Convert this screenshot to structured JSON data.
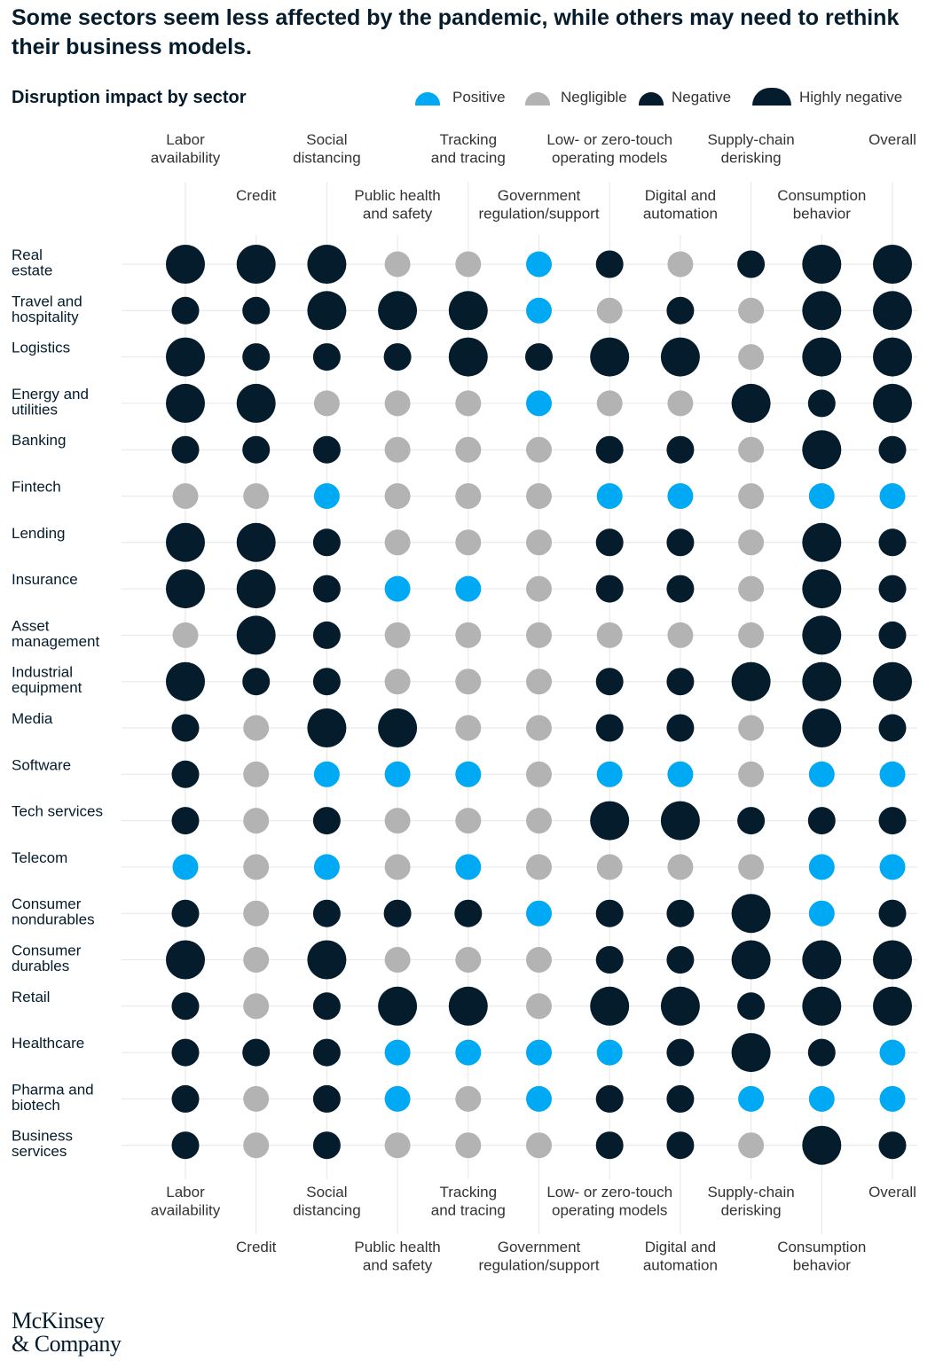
{
  "headline": "Some sectors seem less affected by the pandemic, while others may need to rethink their business models.",
  "subtitle": "Disruption impact by sector",
  "legend": {
    "positive": "Positive",
    "negligible": "Negligible",
    "negative": "Negative",
    "highly_negative": "Highly negative"
  },
  "colors": {
    "positive": "#00a9f4",
    "negligible": "#b3b3b3",
    "negative": "#051c2c",
    "highly_negative": "#051c2c",
    "gridline": "#e6e6e6"
  },
  "logo": {
    "line1": "McKinsey",
    "line2": "& Company"
  },
  "chart_data": {
    "type": "bubble_matrix",
    "title": "Disruption impact by sector",
    "value_scale": {
      "P": "Positive",
      "N": "Negligible",
      "G": "Negative",
      "H": "Highly negative"
    },
    "columns": [
      [
        "Labor",
        "availability"
      ],
      [
        "Credit"
      ],
      [
        "Social",
        "distancing"
      ],
      [
        "Public health",
        "and safety"
      ],
      [
        "Tracking",
        "and tracing"
      ],
      [
        "Government",
        "regulation/support"
      ],
      [
        "Low- or zero-touch",
        "operating models"
      ],
      [
        "Digital and",
        "automation"
      ],
      [
        "Supply-chain",
        "derisking"
      ],
      [
        "Consumption",
        "behavior"
      ],
      [
        "Overall"
      ]
    ],
    "rows": [
      {
        "sector": [
          "Real",
          "estate"
        ],
        "values": [
          "H",
          "H",
          "H",
          "N",
          "N",
          "P",
          "G",
          "N",
          "G",
          "H",
          "H"
        ]
      },
      {
        "sector": [
          "Travel and",
          "hospitality"
        ],
        "values": [
          "G",
          "G",
          "H",
          "H",
          "H",
          "P",
          "N",
          "G",
          "N",
          "H",
          "H"
        ]
      },
      {
        "sector": [
          "Logistics"
        ],
        "values": [
          "H",
          "G",
          "G",
          "G",
          "H",
          "G",
          "H",
          "H",
          "N",
          "H",
          "H"
        ]
      },
      {
        "sector": [
          "Energy and",
          "utilities"
        ],
        "values": [
          "H",
          "H",
          "N",
          "N",
          "N",
          "P",
          "N",
          "N",
          "H",
          "G",
          "H"
        ]
      },
      {
        "sector": [
          "Banking"
        ],
        "values": [
          "G",
          "G",
          "G",
          "N",
          "N",
          "N",
          "G",
          "G",
          "N",
          "H",
          "G"
        ]
      },
      {
        "sector": [
          "Fintech"
        ],
        "values": [
          "N",
          "N",
          "P",
          "N",
          "N",
          "N",
          "P",
          "P",
          "N",
          "P",
          "P"
        ]
      },
      {
        "sector": [
          "Lending"
        ],
        "values": [
          "H",
          "H",
          "G",
          "N",
          "N",
          "N",
          "G",
          "G",
          "N",
          "H",
          "G"
        ]
      },
      {
        "sector": [
          "Insurance"
        ],
        "values": [
          "H",
          "H",
          "G",
          "P",
          "P",
          "N",
          "G",
          "G",
          "N",
          "H",
          "G"
        ]
      },
      {
        "sector": [
          "Asset",
          "management"
        ],
        "values": [
          "N",
          "H",
          "G",
          "N",
          "N",
          "N",
          "N",
          "N",
          "N",
          "H",
          "G"
        ]
      },
      {
        "sector": [
          "Industrial",
          "equipment"
        ],
        "values": [
          "H",
          "G",
          "G",
          "N",
          "N",
          "N",
          "G",
          "G",
          "H",
          "H",
          "H"
        ]
      },
      {
        "sector": [
          "Media"
        ],
        "values": [
          "G",
          "N",
          "H",
          "H",
          "N",
          "N",
          "G",
          "G",
          "N",
          "H",
          "G"
        ]
      },
      {
        "sector": [
          "Software"
        ],
        "values": [
          "G",
          "N",
          "P",
          "P",
          "P",
          "N",
          "P",
          "P",
          "N",
          "P",
          "P"
        ]
      },
      {
        "sector": [
          "Tech services"
        ],
        "values": [
          "G",
          "N",
          "G",
          "N",
          "N",
          "N",
          "H",
          "H",
          "G",
          "G",
          "G"
        ]
      },
      {
        "sector": [
          "Telecom"
        ],
        "values": [
          "P",
          "N",
          "P",
          "N",
          "P",
          "N",
          "N",
          "N",
          "N",
          "P",
          "P"
        ]
      },
      {
        "sector": [
          "Consumer",
          "nondurables"
        ],
        "values": [
          "G",
          "N",
          "G",
          "G",
          "G",
          "P",
          "G",
          "G",
          "H",
          "P",
          "G"
        ]
      },
      {
        "sector": [
          "Consumer",
          "durables"
        ],
        "values": [
          "H",
          "N",
          "H",
          "N",
          "N",
          "N",
          "G",
          "G",
          "H",
          "H",
          "H"
        ]
      },
      {
        "sector": [
          "Retail"
        ],
        "values": [
          "G",
          "N",
          "G",
          "H",
          "H",
          "N",
          "H",
          "H",
          "G",
          "H",
          "H"
        ]
      },
      {
        "sector": [
          "Healthcare"
        ],
        "values": [
          "G",
          "G",
          "G",
          "P",
          "P",
          "P",
          "P",
          "G",
          "H",
          "G",
          "P"
        ]
      },
      {
        "sector": [
          "Pharma and",
          "biotech"
        ],
        "values": [
          "G",
          "N",
          "G",
          "P",
          "N",
          "P",
          "G",
          "G",
          "P",
          "P",
          "P"
        ]
      },
      {
        "sector": [
          "Business",
          "services"
        ],
        "values": [
          "G",
          "N",
          "G",
          "N",
          "N",
          "N",
          "G",
          "G",
          "N",
          "H",
          "G"
        ]
      }
    ]
  }
}
